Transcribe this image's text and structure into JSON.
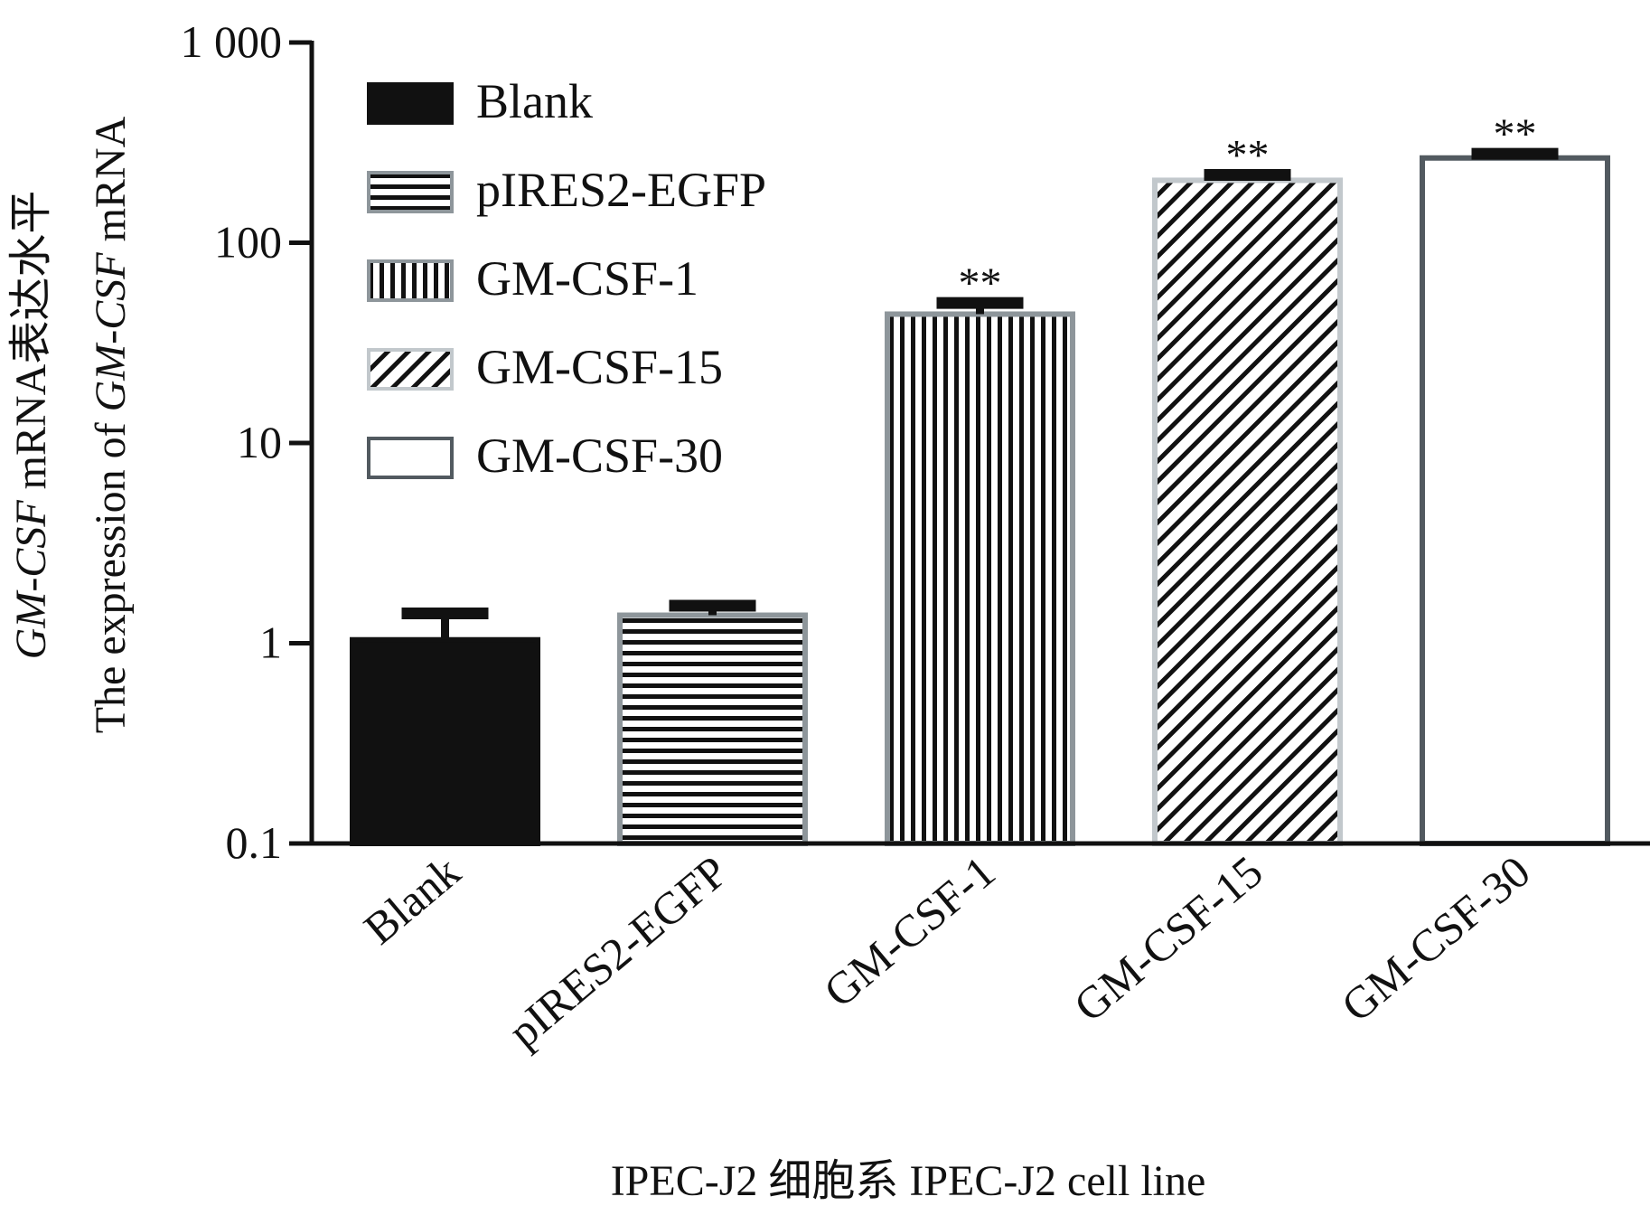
{
  "chart_data": {
    "type": "bar",
    "title": "",
    "scale": "log",
    "ylim": [
      0.1,
      1000
    ],
    "yticks": [
      {
        "value": 0.1,
        "label": "0.1"
      },
      {
        "value": 1,
        "label": "1"
      },
      {
        "value": 10,
        "label": "10"
      },
      {
        "value": 100,
        "label": "100"
      },
      {
        "value": 1000,
        "label": "1 000"
      }
    ],
    "ylabel": {
      "line1_italic": "GM-CSF",
      "line1_rest": " mRNA表达水平",
      "line2_start": "The expression of ",
      "line2_italic": "GM-CSF",
      "line2_rest": " mRNA"
    },
    "xlabel": "IPEC-J2 细胞系  IPEC-J2 cell line",
    "categories": [
      "Blank",
      "pIRES2-EGFP",
      "GM-CSF-1",
      "GM-CSF-15",
      "GM-CSF-30"
    ],
    "values": [
      1.04,
      1.38,
      44,
      205,
      265
    ],
    "errors": [
      0.37,
      0.16,
      6,
      13,
      13
    ],
    "significance": [
      "",
      "",
      "**",
      "**",
      "**"
    ],
    "fills": [
      "solid",
      "horizontal",
      "vertical",
      "diagonal",
      "empty"
    ],
    "legend_position": "top-left",
    "legend": [
      "Blank",
      "pIRES2-EGFP",
      "GM-CSF-1",
      "GM-CSF-15",
      "GM-CSF-30"
    ],
    "colors": {
      "bar_black": "#111111",
      "border_light_gray": "#8e969b",
      "border_lighter_gray": "#c2c8cc",
      "border_dark_gray": "#525a60",
      "axis": "#111111"
    }
  }
}
